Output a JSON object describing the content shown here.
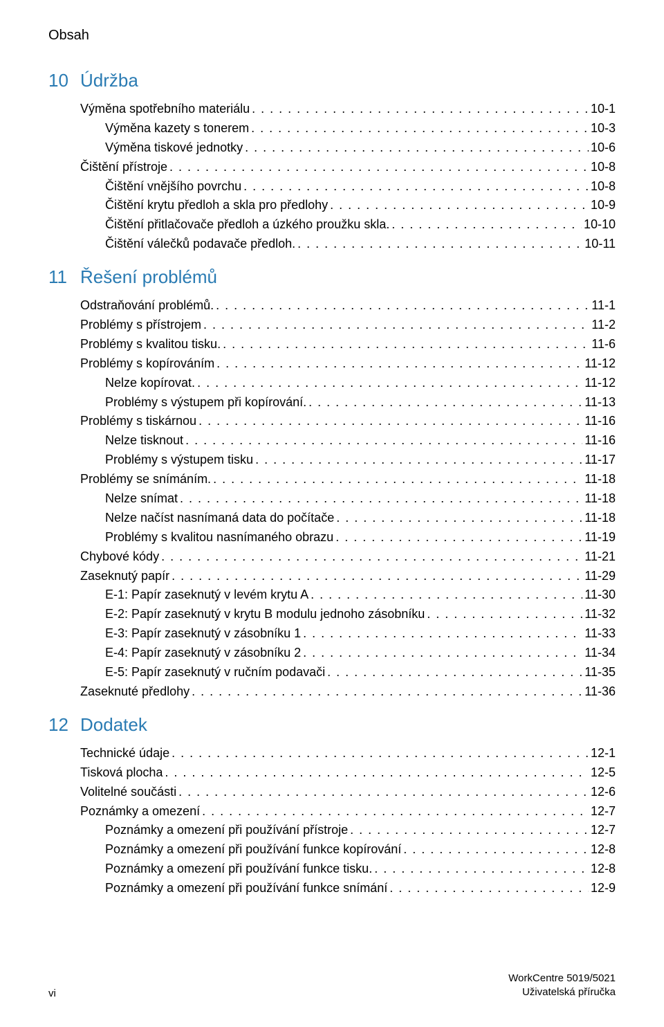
{
  "header": "Obsah",
  "chapters": [
    {
      "num": "10",
      "title": "Údržba",
      "entries": [
        {
          "level": 1,
          "label": "Výměna spotřebního materiálu",
          "page": "10-1"
        },
        {
          "level": 2,
          "label": "Výměna kazety s tonerem",
          "page": "10-3"
        },
        {
          "level": 2,
          "label": "Výměna tiskové jednotky",
          "page": "10-6"
        },
        {
          "level": 1,
          "label": "Čištění přístroje",
          "page": "10-8"
        },
        {
          "level": 2,
          "label": "Čištění vnějšího povrchu",
          "page": "10-8"
        },
        {
          "level": 2,
          "label": "Čištění krytu předloh a skla pro předlohy",
          "page": "10-9"
        },
        {
          "level": 2,
          "label": "Čištění přitlačovače předloh a úzkého proužku skla.",
          "page": "10-10"
        },
        {
          "level": 2,
          "label": "Čištění válečků podavače předloh.",
          "page": "10-11"
        }
      ]
    },
    {
      "num": "11",
      "title": "Řešení problémů",
      "entries": [
        {
          "level": 1,
          "label": "Odstraňování problémů.",
          "page": "11-1"
        },
        {
          "level": 1,
          "label": "Problémy s přístrojem",
          "page": "11-2"
        },
        {
          "level": 1,
          "label": "Problémy s kvalitou tisku.",
          "page": "11-6"
        },
        {
          "level": 1,
          "label": "Problémy s kopírováním",
          "page": "11-12"
        },
        {
          "level": 2,
          "label": "Nelze kopírovat.",
          "page": "11-12"
        },
        {
          "level": 2,
          "label": "Problémy s výstupem při kopírování.",
          "page": "11-13"
        },
        {
          "level": 1,
          "label": "Problémy s tiskárnou",
          "page": "11-16"
        },
        {
          "level": 2,
          "label": "Nelze tisknout",
          "page": "11-16"
        },
        {
          "level": 2,
          "label": "Problémy s výstupem tisku",
          "page": "11-17"
        },
        {
          "level": 1,
          "label": "Problémy se snímáním.",
          "page": "11-18"
        },
        {
          "level": 2,
          "label": "Nelze snímat",
          "page": "11-18"
        },
        {
          "level": 2,
          "label": "Nelze načíst nasnímaná data do počítače",
          "page": "11-18"
        },
        {
          "level": 2,
          "label": "Problémy s kvalitou nasnímaného obrazu",
          "page": "11-19"
        },
        {
          "level": 1,
          "label": "Chybové kódy",
          "page": "11-21"
        },
        {
          "level": 1,
          "label": "Zaseknutý papír",
          "page": "11-29"
        },
        {
          "level": 2,
          "label": "E-1: Papír zaseknutý v levém krytu A",
          "page": "11-30"
        },
        {
          "level": 2,
          "label": "E-2: Papír zaseknutý v krytu B modulu jednoho zásobníku",
          "page": "11-32"
        },
        {
          "level": 2,
          "label": "E-3: Papír zaseknutý v zásobníku 1",
          "page": "11-33"
        },
        {
          "level": 2,
          "label": "E-4: Papír zaseknutý v zásobníku 2",
          "page": "11-34"
        },
        {
          "level": 2,
          "label": "E-5: Papír zaseknutý v ručním podavači",
          "page": "11-35"
        },
        {
          "level": 1,
          "label": "Zaseknuté předlohy",
          "page": "11-36"
        }
      ]
    },
    {
      "num": "12",
      "title": "Dodatek",
      "entries": [
        {
          "level": 1,
          "label": "Technické údaje",
          "page": "12-1"
        },
        {
          "level": 1,
          "label": "Tisková plocha",
          "page": "12-5"
        },
        {
          "level": 1,
          "label": "Volitelné součásti",
          "page": "12-6"
        },
        {
          "level": 1,
          "label": "Poznámky a omezení",
          "page": "12-7"
        },
        {
          "level": 2,
          "label": "Poznámky a omezení při používání přístroje",
          "page": "12-7"
        },
        {
          "level": 2,
          "label": "Poznámky a omezení při používání funkce kopírování",
          "page": "12-8"
        },
        {
          "level": 2,
          "label": "Poznámky a omezení při používání funkce tisku.",
          "page": "12-8"
        },
        {
          "level": 2,
          "label": "Poznámky a omezení při používání funkce snímání",
          "page": "12-9"
        }
      ]
    }
  ],
  "footer": {
    "left": "vi",
    "right_line1": "WorkCentre 5019/5021",
    "right_line2": "Uživatelská příručka"
  },
  "colors": {
    "chapter": "#2a7bb3",
    "text": "#000000",
    "background": "#ffffff"
  },
  "fonts": {
    "header_size_pt": 20,
    "chapter_size_pt": 26,
    "entry_size_pt": 18,
    "footer_size_pt": 15
  }
}
